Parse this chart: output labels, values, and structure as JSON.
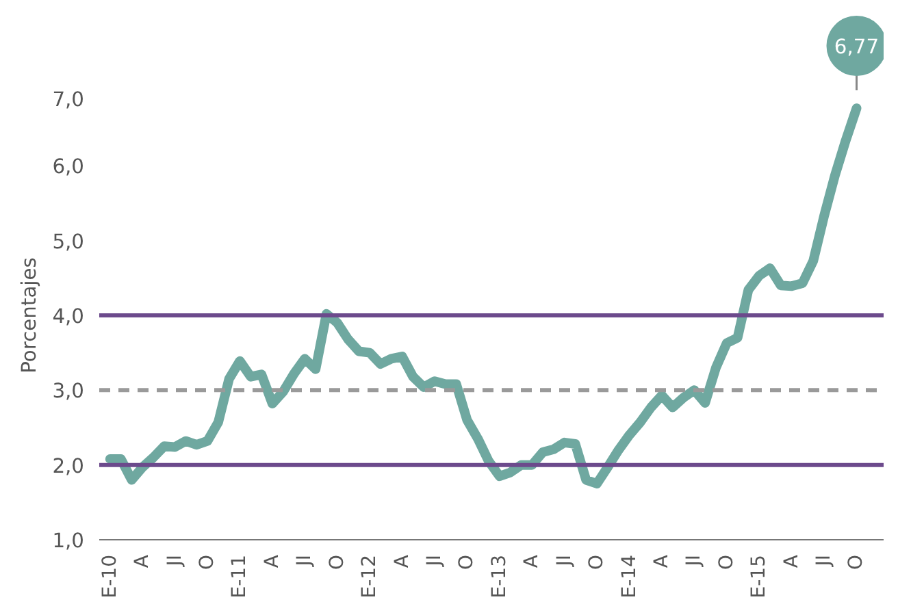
{
  "chart_data": {
    "type": "line",
    "ylabel": "Porcentajes",
    "categories": [
      "E-10",
      null,
      null,
      "A",
      null,
      null,
      "JI",
      null,
      null,
      "O",
      null,
      null,
      "E-11",
      null,
      null,
      "A",
      null,
      null,
      "JI",
      null,
      null,
      "O",
      null,
      null,
      "E-12",
      null,
      null,
      "A",
      null,
      null,
      "JI",
      null,
      null,
      "O",
      null,
      null,
      "E-13",
      null,
      null,
      "A",
      null,
      null,
      "JI",
      null,
      null,
      "O",
      null,
      null,
      "E-14",
      null,
      null,
      "A",
      null,
      null,
      "JI",
      null,
      null,
      "O",
      null,
      null,
      "E-15",
      null,
      null,
      "A",
      null,
      null,
      "JI",
      null,
      null,
      "O"
    ],
    "series": [
      {
        "color": "#6fa8a0",
        "values": [
          2.08,
          2.08,
          1.8,
          1.97,
          2.1,
          2.25,
          2.24,
          2.32,
          2.27,
          2.32,
          2.57,
          3.15,
          3.39,
          3.18,
          3.21,
          2.82,
          2.98,
          3.22,
          3.42,
          3.28,
          4.02,
          3.9,
          3.68,
          3.52,
          3.5,
          3.35,
          3.42,
          3.45,
          3.18,
          3.04,
          3.12,
          3.08,
          3.08,
          2.6,
          2.35,
          2.05,
          1.85,
          1.9,
          2.0,
          2.0,
          2.17,
          2.21,
          2.3,
          2.28,
          1.8,
          1.75,
          1.97,
          2.2,
          2.4,
          2.57,
          2.77,
          2.93,
          2.77,
          2.9,
          3.0,
          2.83,
          3.3,
          3.63,
          3.7,
          4.34,
          4.53,
          4.63,
          4.4,
          4.39,
          4.43,
          4.73,
          5.33,
          5.87,
          6.34,
          6.77
        ],
        "value_labels": [
          null,
          null,
          null,
          null,
          null,
          null,
          null,
          null,
          null,
          null,
          null,
          null,
          null,
          null,
          null,
          null,
          null,
          null,
          null,
          null,
          null,
          null,
          null,
          null,
          null,
          null,
          null,
          null,
          null,
          null,
          null,
          null,
          null,
          null,
          null,
          null,
          null,
          null,
          null,
          null,
          null,
          null,
          null,
          null,
          null,
          null,
          null,
          null,
          null,
          null,
          null,
          null,
          null,
          null,
          null,
          null,
          null,
          null,
          null,
          null,
          null,
          null,
          null,
          null,
          null,
          null,
          null,
          null,
          null,
          "6,77"
        ]
      }
    ],
    "ylim": [
      1.0,
      7.0
    ],
    "yticks": [
      {
        "value": 1,
        "label": "1,0"
      },
      {
        "value": 2,
        "label": "2,0"
      },
      {
        "value": 3,
        "label": "3,0"
      },
      {
        "value": 4,
        "label": "4,0"
      },
      {
        "value": 5,
        "label": "5,0"
      },
      {
        "value": 6,
        "label": "6,0"
      },
      {
        "value": 7,
        "label": "7,0"
      }
    ],
    "ref_lines": [
      {
        "axis": "y",
        "value": 4,
        "color": "#6c4a8c",
        "line_style": "solid"
      },
      {
        "axis": "y",
        "value": 3,
        "color": "#9a9a9a",
        "line_style": "dashed"
      },
      {
        "axis": "y",
        "value": 2,
        "color": "#6c4a8c",
        "line_style": "solid"
      }
    ],
    "grid": false
  }
}
